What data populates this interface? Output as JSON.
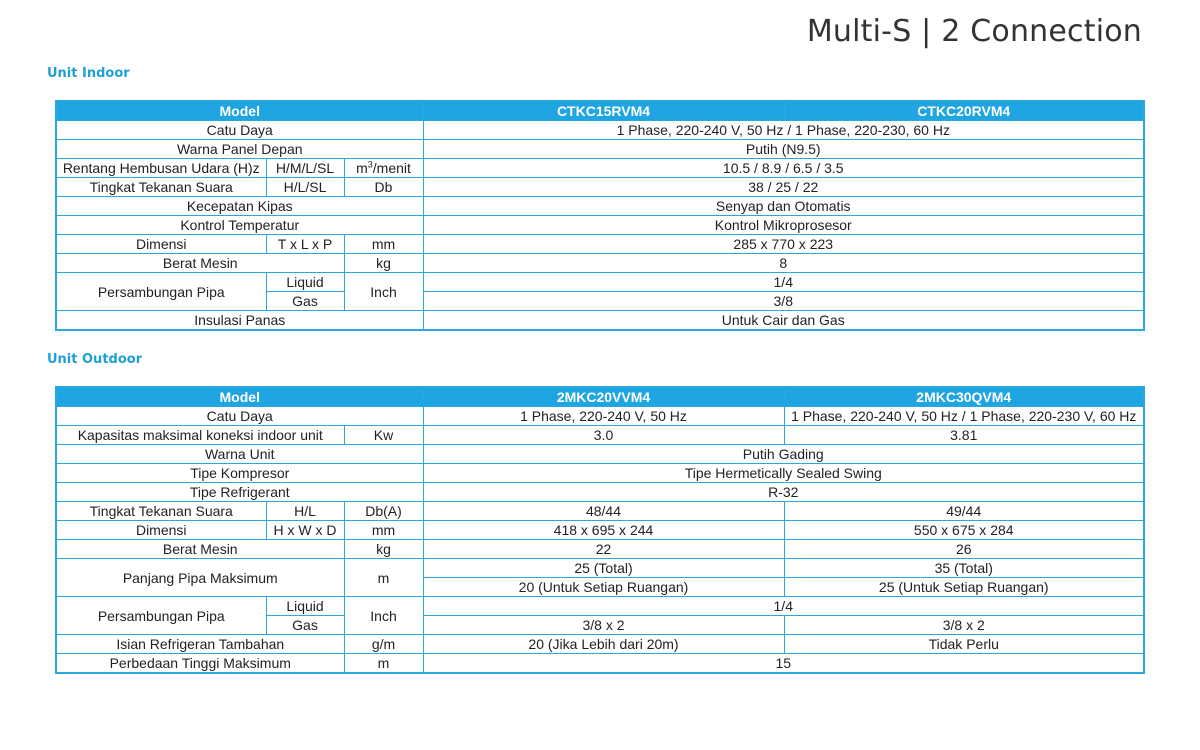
{
  "page_title": "Multi-S | 2 Connection",
  "indoor": {
    "section_label": "Unit Indoor",
    "header": {
      "model": "Model",
      "col1": "CTKC15RVM4",
      "col2": "CTKC20RVM4"
    },
    "rows": {
      "catu_daya": {
        "label": "Catu Daya",
        "value": "1 Phase, 220-240 V, 50 Hz / 1 Phase, 220-230, 60 Hz"
      },
      "warna_panel": {
        "label": "Warna Panel Depan",
        "value": "Putih (N9.5)"
      },
      "rentang": {
        "label": "Rentang Hembusan Udara (H)z",
        "sub": "H/M/L/SL",
        "unit_base": "m",
        "unit_sup": "3",
        "unit_rest": "/menit",
        "value": "10.5 / 8.9 / 6.5 / 3.5"
      },
      "tekanan": {
        "label": "Tingkat Tekanan Suara",
        "sub": "H/L/SL",
        "unit": "Db",
        "value": "38 / 25 / 22"
      },
      "kipas": {
        "label": "Kecepatan Kipas",
        "value": "Senyap dan Otomatis"
      },
      "kontrol": {
        "label": "Kontrol Temperatur",
        "value": "Kontrol Mikroprosesor"
      },
      "dimensi": {
        "label": "Dimensi",
        "sub": "T x L x P",
        "unit": "mm",
        "value": "285 x 770 x 223"
      },
      "berat": {
        "label": "Berat Mesin",
        "unit": "kg",
        "value": "8"
      },
      "pipa": {
        "label": "Persambungan Pipa",
        "sub1": "Liquid",
        "sub2": "Gas",
        "unit": "Inch",
        "value1": "1/4",
        "value2": "3/8"
      },
      "insulasi": {
        "label": "Insulasi Panas",
        "value": "Untuk Cair dan Gas"
      }
    }
  },
  "outdoor": {
    "section_label": "Unit Outdoor",
    "header": {
      "model": "Model",
      "col1": "2MKC20VVM4",
      "col2": "2MKC30QVM4"
    },
    "rows": {
      "catu_daya": {
        "label": "Catu Daya",
        "value1": "1 Phase, 220-240 V, 50 Hz",
        "value2": "1 Phase, 220-240 V, 50 Hz / 1 Phase, 220-230 V, 60 Hz"
      },
      "kapasitas": {
        "label": "Kapasitas maksimal koneksi indoor unit",
        "unit": "Kw",
        "value1": "3.0",
        "value2": "3.81"
      },
      "warna": {
        "label": "Warna Unit",
        "value": "Putih Gading"
      },
      "kompresor": {
        "label": "Tipe Kompresor",
        "value": "Tipe Hermetically Sealed Swing"
      },
      "refrigerant": {
        "label": "Tipe Refrigerant",
        "value": "R-32"
      },
      "tekanan": {
        "label": "Tingkat Tekanan Suara",
        "sub": "H/L",
        "unit": "Db(A)",
        "value1": "48/44",
        "value2": "49/44"
      },
      "dimensi": {
        "label": "Dimensi",
        "sub": "H x W x D",
        "unit": "mm",
        "value1": "418 x 695 x 244",
        "value2": "550 x 675 x 284"
      },
      "berat": {
        "label": "Berat Mesin",
        "unit": "kg",
        "value1": "22",
        "value2": "26"
      },
      "panjang": {
        "label": "Panjang Pipa Maksimum",
        "unit": "m",
        "value1a": "25 (Total)",
        "value1b": "20 (Untuk Setiap Ruangan)",
        "value2a": "35 (Total)",
        "value2b": "25 (Untuk Setiap Ruangan)"
      },
      "pipa": {
        "label": "Persambungan Pipa",
        "sub1": "Liquid",
        "sub2": "Gas",
        "unit": "Inch",
        "value_liquid": "1/4",
        "value_gas1": "3/8 x 2",
        "value_gas2": "3/8 x 2"
      },
      "isian": {
        "label": "Isian Refrigeran Tambahan",
        "unit": "g/m",
        "value1": "20 (Jika Lebih dari 20m)",
        "value2": "Tidak Perlu"
      },
      "perbedaan": {
        "label": "Perbedaan Tinggi Maksimum",
        "unit": "m",
        "value": "15"
      }
    }
  }
}
